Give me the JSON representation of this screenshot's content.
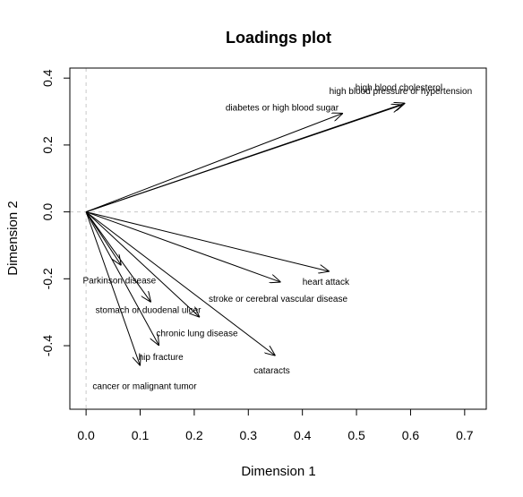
{
  "chart_data": {
    "type": "line",
    "title": "Loadings plot",
    "xlabel": "Dimension 1",
    "ylabel": "Dimension 2",
    "xlim": [
      -0.03,
      0.74
    ],
    "ylim": [
      -0.59,
      0.43
    ],
    "xticks": [
      0.0,
      0.1,
      0.2,
      0.3,
      0.4,
      0.5,
      0.6,
      0.7
    ],
    "yticks": [
      -0.4,
      -0.2,
      0.0,
      0.2,
      0.4
    ],
    "xtick_labels": [
      "0.0",
      "0.1",
      "0.2",
      "0.3",
      "0.4",
      "0.5",
      "0.6",
      "0.7"
    ],
    "ytick_labels": [
      "-0.4",
      "-0.2",
      "0.0",
      "0.2",
      "0.4"
    ],
    "reference_lines": {
      "x": 0,
      "y": 0,
      "style": "dashed"
    },
    "origin": [
      0,
      0
    ],
    "series": [
      {
        "name": "high blood cholesterol",
        "x": 0.59,
        "y": 0.325
      },
      {
        "name": "high blood pressure or hypertension",
        "x": 0.585,
        "y": 0.32
      },
      {
        "name": "diabetes or high blood sugar",
        "x": 0.475,
        "y": 0.295
      },
      {
        "name": "heart attack",
        "x": 0.45,
        "y": -0.178
      },
      {
        "name": "stroke or cerebral vascular disease",
        "x": 0.36,
        "y": -0.21
      },
      {
        "name": "cataracts",
        "x": 0.35,
        "y": -0.43
      },
      {
        "name": "Parkinson disease",
        "x": 0.065,
        "y": -0.16
      },
      {
        "name": "stomach or duodenal ulcer",
        "x": 0.12,
        "y": -0.27
      },
      {
        "name": "chronic lung disease",
        "x": 0.21,
        "y": -0.315
      },
      {
        "name": "hip fracture",
        "x": 0.135,
        "y": -0.4
      },
      {
        "name": "cancer or malignant tumor",
        "x": 0.1,
        "y": -0.46
      }
    ]
  }
}
